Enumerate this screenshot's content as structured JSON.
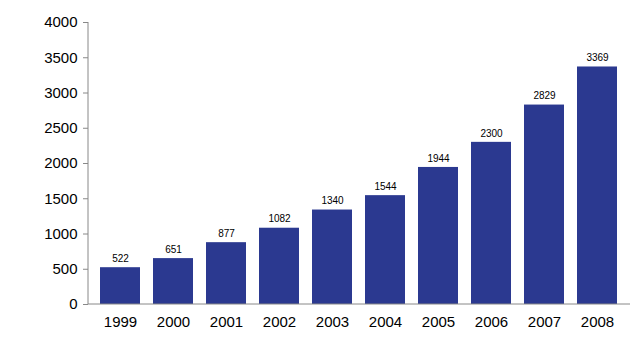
{
  "chart_data": {
    "type": "bar",
    "categories": [
      "1999",
      "2000",
      "2001",
      "2002",
      "2003",
      "2004",
      "2005",
      "2006",
      "2007",
      "2008"
    ],
    "values": [
      522,
      651,
      877,
      1082,
      1340,
      1544,
      1944,
      2300,
      2829,
      3369
    ],
    "color": "#2b3990",
    "ylim": [
      0,
      4000
    ],
    "yticks": [
      0,
      500,
      1000,
      1500,
      2000,
      2500,
      3000,
      3500,
      4000
    ],
    "grid": false,
    "data_labels": true
  }
}
